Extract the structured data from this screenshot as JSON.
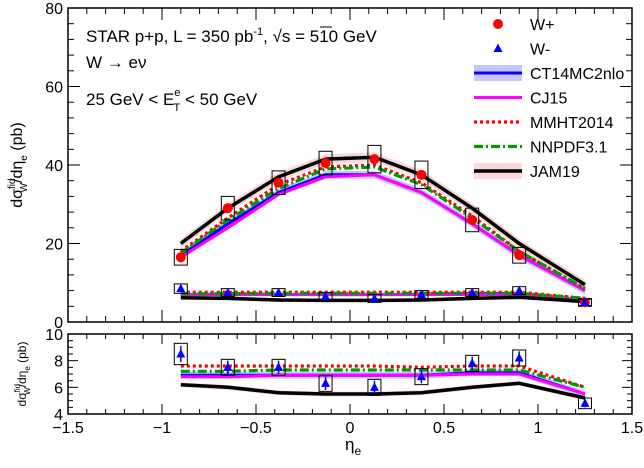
{
  "chart_data": [
    {
      "type": "line",
      "panel": "top",
      "annotations": {
        "line1": "STAR p+p, L = 350 pb",
        "line1_sup": "-1",
        "line1_b": ", ",
        "line1_sqrt": "√",
        "line1_c": "s = 510 GeV",
        "line2": "W → eν",
        "line3_a": "25 GeV < E",
        "line3_sub": "T",
        "line3_sup": "e",
        "line3_b": " < 50 GeV"
      },
      "ylabel": {
        "a": "dσ",
        "sup": "fid",
        "sub": "W",
        "b": "/dη",
        "sub2": "e",
        "c": " (pb)"
      },
      "xlim": [
        -1.5,
        1.5
      ],
      "ylim": [
        0,
        80
      ],
      "yticks": [
        "0",
        "20",
        "40",
        "60",
        "80"
      ],
      "legend_position": "top-right",
      "legend": [
        {
          "label": "W+",
          "marker": "circle",
          "color": "#ff0000"
        },
        {
          "label": "W-",
          "marker": "triangle",
          "color": "#0000ff"
        },
        {
          "label": "CT14MC2nlo",
          "style": "solid-band",
          "color": "#0000ff"
        },
        {
          "label": "CJ15",
          "style": "solid",
          "color": "#ff00ff"
        },
        {
          "label": "MMHT2014",
          "style": "dotted",
          "color": "#ff0000"
        },
        {
          "label": "NNPDF3.1",
          "style": "dashdot",
          "color": "#009900"
        },
        {
          "label": "JAM19",
          "style": "solid-band",
          "color": "#000000"
        }
      ],
      "x_points": [
        -0.9,
        -0.65,
        -0.38,
        -0.13,
        0.13,
        0.38,
        0.65,
        0.9,
        1.25
      ],
      "data": {
        "W+": {
          "y": [
            16.5,
            29.0,
            35.5,
            40.5,
            41.5,
            37.5,
            26.0,
            17.0,
            5.0
          ],
          "box": [
            2.0,
            3.0,
            3.0,
            3.0,
            3.5,
            3.5,
            3.0,
            2.0,
            1.0
          ]
        },
        "W-": {
          "y": [
            8.5,
            7.5,
            7.5,
            6.5,
            6.0,
            7.0,
            7.5,
            8.0,
            5.0
          ],
          "box": [
            1.2,
            1.0,
            1.0,
            1.0,
            1.0,
            1.0,
            1.0,
            1.0,
            0.8
          ]
        }
      },
      "theory_wplus": {
        "CT14MC2nlo": [
          17.0,
          25.0,
          33.0,
          37.5,
          37.5,
          33.0,
          25.0,
          17.0,
          8.0
        ],
        "CJ15": [
          16.5,
          24.0,
          32.5,
          37.0,
          37.5,
          33.0,
          25.0,
          17.0,
          8.0
        ],
        "MMHT2014": [
          18.0,
          26.5,
          35.0,
          39.5,
          40.0,
          35.5,
          27.0,
          18.0,
          8.5
        ],
        "NNPDF3.1": [
          17.5,
          26.0,
          34.0,
          39.0,
          39.5,
          35.0,
          26.5,
          18.0,
          8.5
        ],
        "JAM19": [
          20.0,
          29.0,
          37.0,
          41.5,
          42.0,
          37.5,
          29.0,
          20.0,
          9.5
        ]
      },
      "theory_wminus": {
        "CT14MC2nlo": [
          7.0,
          7.0,
          7.0,
          7.0,
          7.0,
          7.0,
          7.2,
          7.2,
          5.5
        ],
        "CJ15": [
          7.0,
          7.0,
          7.0,
          7.0,
          7.0,
          7.0,
          7.0,
          7.0,
          5.5
        ],
        "MMHT2014": [
          7.6,
          7.6,
          7.6,
          7.6,
          7.6,
          7.6,
          7.6,
          7.6,
          6.0
        ],
        "NNPDF3.1": [
          7.2,
          7.2,
          7.3,
          7.3,
          7.3,
          7.3,
          7.3,
          7.3,
          6.0
        ],
        "JAM19": [
          6.2,
          6.0,
          5.6,
          5.5,
          5.5,
          5.6,
          6.0,
          6.3,
          5.2
        ]
      }
    },
    {
      "type": "line",
      "panel": "bottom",
      "xlabel": {
        "a": "η",
        "sub": "e"
      },
      "ylabel": {
        "a": "dσ",
        "sup": "fid",
        "sub": "W",
        "b": "/dη",
        "sub2": "e",
        "c": " (pb)"
      },
      "xlim": [
        -1.5,
        1.5
      ],
      "ylim": [
        4,
        10
      ],
      "xticks": [
        "−1.5",
        "−1",
        "−0.5",
        "0",
        "0.5",
        "1",
        "1.5"
      ],
      "yticks": [
        "4",
        "6",
        "8",
        "10"
      ],
      "x_points": [
        -0.9,
        -0.65,
        -0.38,
        -0.13,
        0.13,
        0.38,
        0.65,
        0.9,
        1.25
      ],
      "data": {
        "W-": {
          "y": [
            8.5,
            7.5,
            7.5,
            6.3,
            6.0,
            6.8,
            7.8,
            8.2,
            4.8
          ],
          "box": [
            0.8,
            0.6,
            0.6,
            0.6,
            0.6,
            0.6,
            0.6,
            0.6,
            0.4
          ],
          "err": [
            0.6,
            0.5,
            0.5,
            0.5,
            0.5,
            0.5,
            0.5,
            0.5,
            0.3
          ]
        }
      },
      "theory": {
        "CT14MC2nlo": [
          6.9,
          6.9,
          6.9,
          6.9,
          6.9,
          6.9,
          7.1,
          7.1,
          5.5
        ],
        "CJ15": [
          6.8,
          6.8,
          6.9,
          6.9,
          6.9,
          6.9,
          7.0,
          7.0,
          5.5
        ],
        "MMHT2014": [
          7.6,
          7.6,
          7.6,
          7.6,
          7.6,
          7.5,
          7.6,
          7.6,
          6.0
        ],
        "NNPDF3.1": [
          7.2,
          7.2,
          7.3,
          7.3,
          7.3,
          7.3,
          7.3,
          7.3,
          6.0
        ],
        "JAM19": [
          6.2,
          6.0,
          5.6,
          5.5,
          5.5,
          5.6,
          6.0,
          6.3,
          5.2
        ]
      }
    }
  ]
}
